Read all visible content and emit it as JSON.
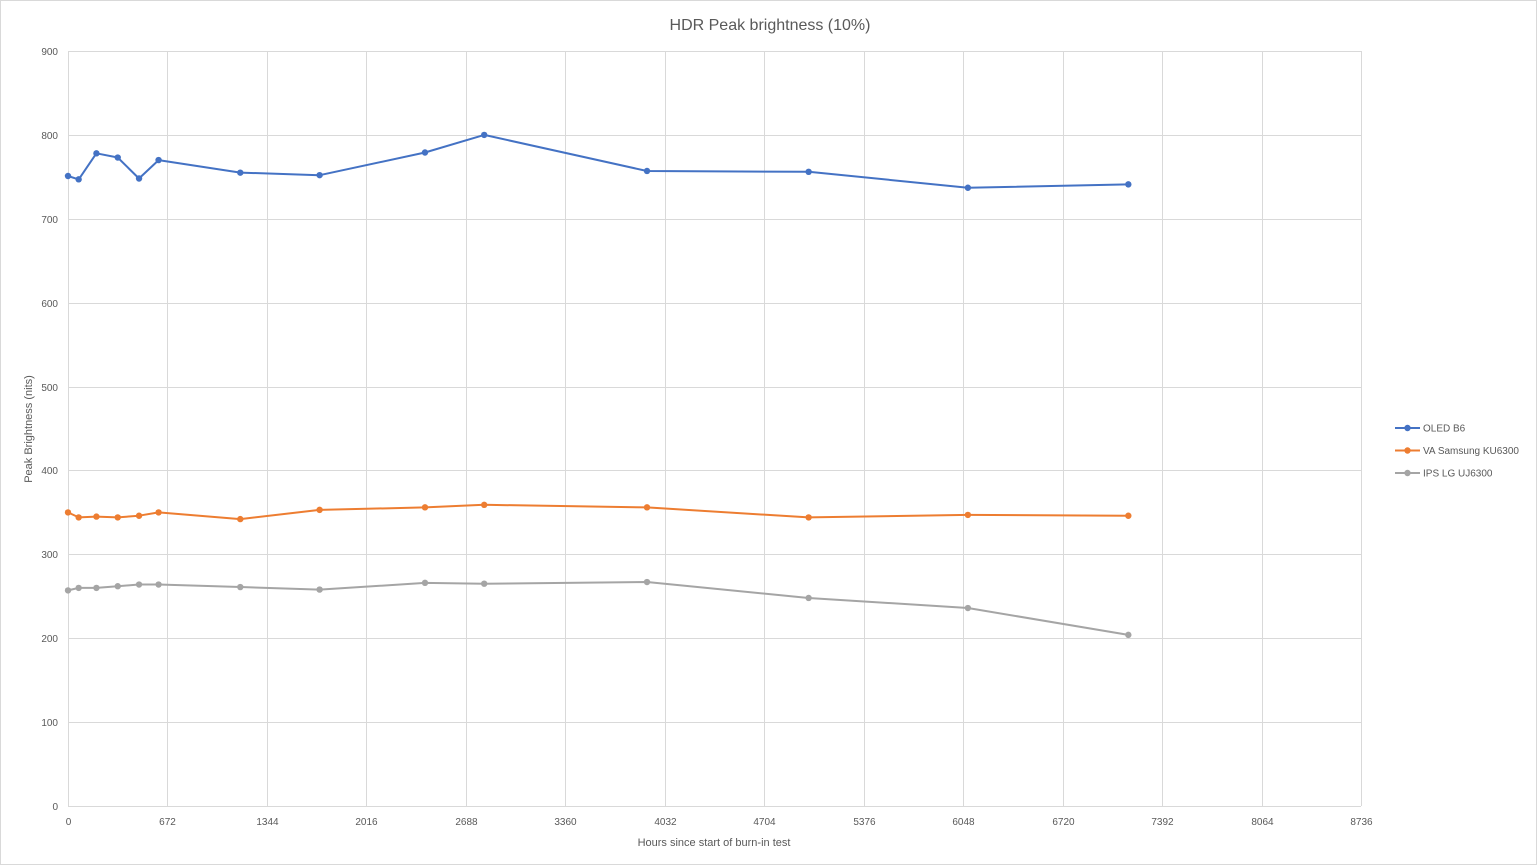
{
  "chart_data": {
    "type": "scatter",
    "title": "HDR Peak brightness (10%)",
    "xlabel": "Hours since start of burn-in test",
    "ylabel": "Peak Brightness (nits)",
    "xlim": [
      0,
      8736
    ],
    "ylim": [
      0,
      900
    ],
    "xticks": [
      0,
      672,
      1344,
      2016,
      2688,
      3360,
      4032,
      4704,
      5376,
      6048,
      6720,
      7392,
      8064,
      8736
    ],
    "yticks": [
      0,
      100,
      200,
      300,
      400,
      500,
      600,
      700,
      800,
      900
    ],
    "grid": true,
    "legend_position": "right",
    "series": [
      {
        "name": "OLED B6",
        "color": "#4472c4",
        "points": [
          [
            0,
            751
          ],
          [
            72,
            747
          ],
          [
            192,
            778
          ],
          [
            336,
            773
          ],
          [
            480,
            748
          ],
          [
            612,
            770
          ],
          [
            1164,
            755
          ],
          [
            1700,
            752
          ],
          [
            2412,
            779
          ],
          [
            2812,
            800
          ],
          [
            3912,
            757
          ],
          [
            5004,
            756
          ],
          [
            6080,
            737
          ],
          [
            7164,
            741
          ]
        ]
      },
      {
        "name": "VA Samsung KU6300",
        "color": "#ed7d31",
        "points": [
          [
            0,
            350
          ],
          [
            72,
            344
          ],
          [
            192,
            345
          ],
          [
            336,
            344
          ],
          [
            480,
            346
          ],
          [
            612,
            350
          ],
          [
            1164,
            342
          ],
          [
            1700,
            353
          ],
          [
            2412,
            356
          ],
          [
            2812,
            359
          ],
          [
            3912,
            356
          ],
          [
            5004,
            344
          ],
          [
            6080,
            347
          ],
          [
            7164,
            346
          ]
        ]
      },
      {
        "name": "IPS LG UJ6300",
        "color": "#a5a5a5",
        "points": [
          [
            0,
            257
          ],
          [
            72,
            260
          ],
          [
            192,
            260
          ],
          [
            336,
            262
          ],
          [
            480,
            264
          ],
          [
            612,
            264
          ],
          [
            1164,
            261
          ],
          [
            1700,
            258
          ],
          [
            2412,
            266
          ],
          [
            2812,
            265
          ],
          [
            3912,
            267
          ],
          [
            5004,
            248
          ],
          [
            6080,
            236
          ],
          [
            7164,
            204
          ]
        ]
      }
    ]
  }
}
